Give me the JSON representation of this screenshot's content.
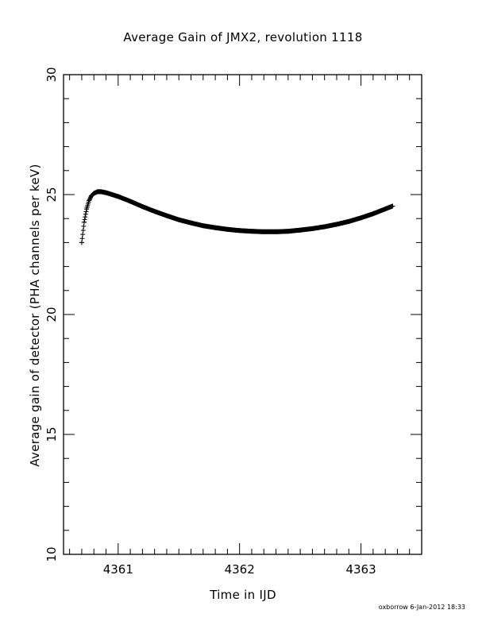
{
  "chart_data": {
    "type": "scatter",
    "title": "Average Gain of JMX2, revolution 1118",
    "xlabel": "Time in IJD",
    "ylabel": "Average gain of detector (PHA channels per keV)",
    "xlim": [
      4360.55,
      4363.5
    ],
    "ylim": [
      10,
      30
    ],
    "x_major_ticks": [
      4361,
      4362,
      4363
    ],
    "x_minor_step": 0.1,
    "y_major_ticks": [
      10,
      15,
      20,
      25,
      30
    ],
    "y_minor_step": 1,
    "grid": false,
    "marker": "plus",
    "series": [
      {
        "x": [
          4360.7,
          4360.72,
          4360.74,
          4360.76,
          4360.78,
          4360.8,
          4360.83,
          4360.86,
          4360.9,
          4361.0,
          4361.1,
          4361.2,
          4361.3,
          4361.4,
          4361.5,
          4361.6,
          4361.7,
          4361.8,
          4361.9,
          4362.0,
          4362.1,
          4362.2,
          4362.3,
          4362.4,
          4362.5,
          4362.6,
          4362.7,
          4362.8,
          4362.9,
          4363.0,
          4363.1,
          4363.2,
          4363.26
        ],
        "y": [
          23.0,
          23.85,
          24.4,
          24.75,
          24.95,
          25.05,
          25.12,
          25.12,
          25.08,
          24.92,
          24.72,
          24.5,
          24.3,
          24.12,
          23.95,
          23.82,
          23.7,
          23.62,
          23.55,
          23.5,
          23.47,
          23.45,
          23.45,
          23.47,
          23.52,
          23.58,
          23.66,
          23.76,
          23.88,
          24.03,
          24.2,
          24.4,
          24.52
        ]
      }
    ]
  },
  "footer": "oxborrow   6-Jan-2012 18:33"
}
